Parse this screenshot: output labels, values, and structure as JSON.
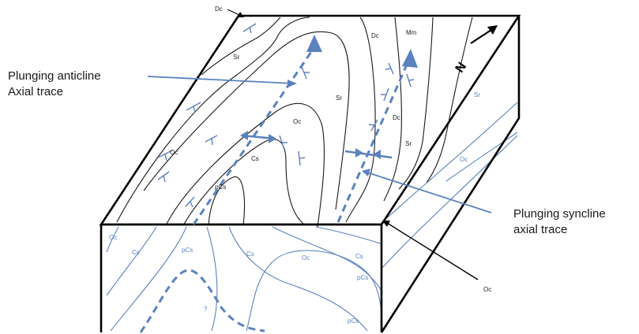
{
  "callouts": {
    "anticline_line1": "Plunging anticline",
    "anticline_line2": "Axial trace",
    "syncline_line1": "Plunging syncline",
    "syncline_line2": "axial trace",
    "north_symbol": "N"
  },
  "labels": {
    "top_dc_corner": "Dc",
    "top_sr_left": "Sr",
    "top_dc_upper": "Dc",
    "top_mm": "Mm",
    "top_sr_mid": "Sr",
    "top_oc_center": "Oc",
    "top_oc_left": "Oc",
    "top_cs_center": "Cs",
    "top_pcs_core": "pCs",
    "top_dc_right": "Dc",
    "top_sr_right": "Sr",
    "side_sr_right": "Sr",
    "side_oc_right": "Oc",
    "front_oc": "Oc",
    "front_cs_left": "Cs",
    "front_pcs_left": "pCs",
    "front_cs_mid": "Cs",
    "front_oc_mid": "Oc",
    "front_cs_right": "Cs",
    "front_pcs_right": "pCs",
    "front_pcs_bottom": "pCs",
    "front_unknown": "?",
    "corner_oc": "Oc"
  },
  "colors": {
    "outline": "#000000",
    "contact_top": "#1a1a1a",
    "contact_side": "#5b82bd",
    "axis": "#5b82bd"
  }
}
